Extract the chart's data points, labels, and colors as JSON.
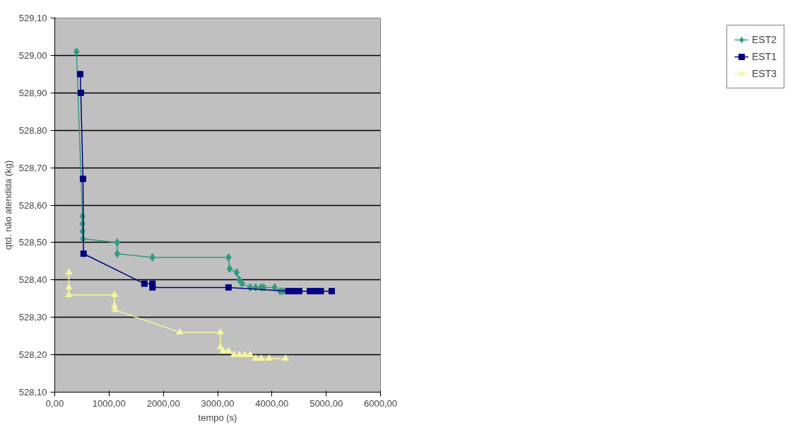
{
  "chart_data": {
    "type": "line",
    "xlabel": "tempo (s)",
    "ylabel": "qtd. não atendida (kg)",
    "xlim": [
      0,
      6000
    ],
    "xticks": [
      {
        "value": 0,
        "label": "0,00"
      },
      {
        "value": 1000,
        "label": "1000,00"
      },
      {
        "value": 2000,
        "label": "2000,00"
      },
      {
        "value": 3000,
        "label": "3000,00"
      },
      {
        "value": 4000,
        "label": "4000,00"
      },
      {
        "value": 5000,
        "label": "5000,00"
      },
      {
        "value": 6000,
        "label": "6000,00"
      }
    ],
    "ylim": [
      528.1,
      529.1
    ],
    "yticks": [
      {
        "value": 528.1,
        "label": "528,10"
      },
      {
        "value": 528.2,
        "label": "528,20"
      },
      {
        "value": 528.3,
        "label": "528,30"
      },
      {
        "value": 528.4,
        "label": "528,40"
      },
      {
        "value": 528.5,
        "label": "528,50"
      },
      {
        "value": 528.6,
        "label": "528,60"
      },
      {
        "value": 528.7,
        "label": "528,70"
      },
      {
        "value": 528.8,
        "label": "528,80"
      },
      {
        "value": 528.9,
        "label": "528,90"
      },
      {
        "value": 529.0,
        "label": "529,00"
      },
      {
        "value": 529.1,
        "label": "529,10"
      }
    ],
    "grid": "y",
    "legend": "right",
    "line_style": "solid",
    "series": [
      {
        "name": "EST2",
        "color": "#339980",
        "marker": "diamond",
        "x": [
          400,
          510,
          510,
          510,
          520,
          1150,
          1150,
          1800,
          3200,
          3220,
          3350,
          3400,
          3450,
          3600,
          3700,
          3800,
          3850,
          4050,
          4150,
          4200
        ],
        "values": [
          529.01,
          528.57,
          528.55,
          528.53,
          528.51,
          528.5,
          528.47,
          528.46,
          528.46,
          528.43,
          528.42,
          528.4,
          528.39,
          528.38,
          528.38,
          528.38,
          528.38,
          528.38,
          528.37,
          528.37
        ]
      },
      {
        "name": "EST1",
        "color": "#000080",
        "marker": "square",
        "x": [
          470,
          480,
          520,
          530,
          1650,
          1800,
          1800,
          3200,
          4300,
          4400,
          4500,
          4700,
          4800,
          4900,
          5100
        ],
        "values": [
          528.95,
          528.9,
          528.67,
          528.47,
          528.39,
          528.39,
          528.38,
          528.38,
          528.37,
          528.37,
          528.37,
          528.37,
          528.37,
          528.37,
          528.37
        ]
      },
      {
        "name": "EST3",
        "color": "#f5f5a0",
        "marker": "triangle",
        "x": [
          260,
          260,
          260,
          1100,
          1100,
          1110,
          2300,
          3050,
          3050,
          3100,
          3200,
          3300,
          3400,
          3500,
          3600,
          3700,
          3800,
          3950,
          4250
        ],
        "values": [
          528.42,
          528.38,
          528.36,
          528.36,
          528.33,
          528.32,
          528.26,
          528.26,
          528.22,
          528.21,
          528.21,
          528.2,
          528.2,
          528.2,
          528.2,
          528.19,
          528.19,
          528.19,
          528.19
        ]
      }
    ]
  }
}
